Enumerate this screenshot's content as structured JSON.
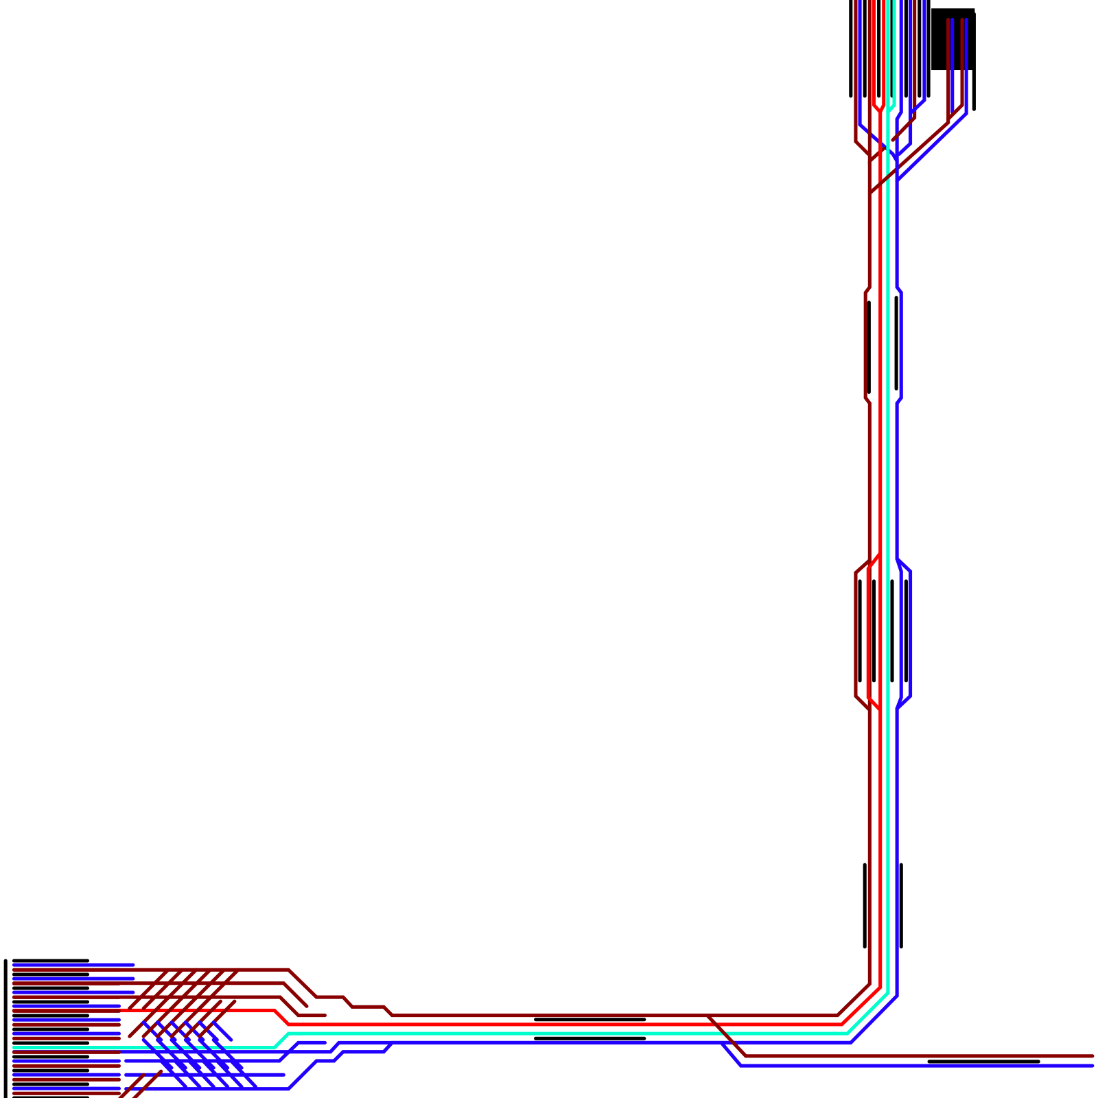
{
  "diagram": {
    "kind": "railway track layout",
    "text_labels": [],
    "colors": {
      "background": "#ffffff",
      "stub": "#000000",
      "darkred": "#880000",
      "red": "#ff0000",
      "cyan": "#00ffcc",
      "blue": "#2200ff"
    }
  }
}
